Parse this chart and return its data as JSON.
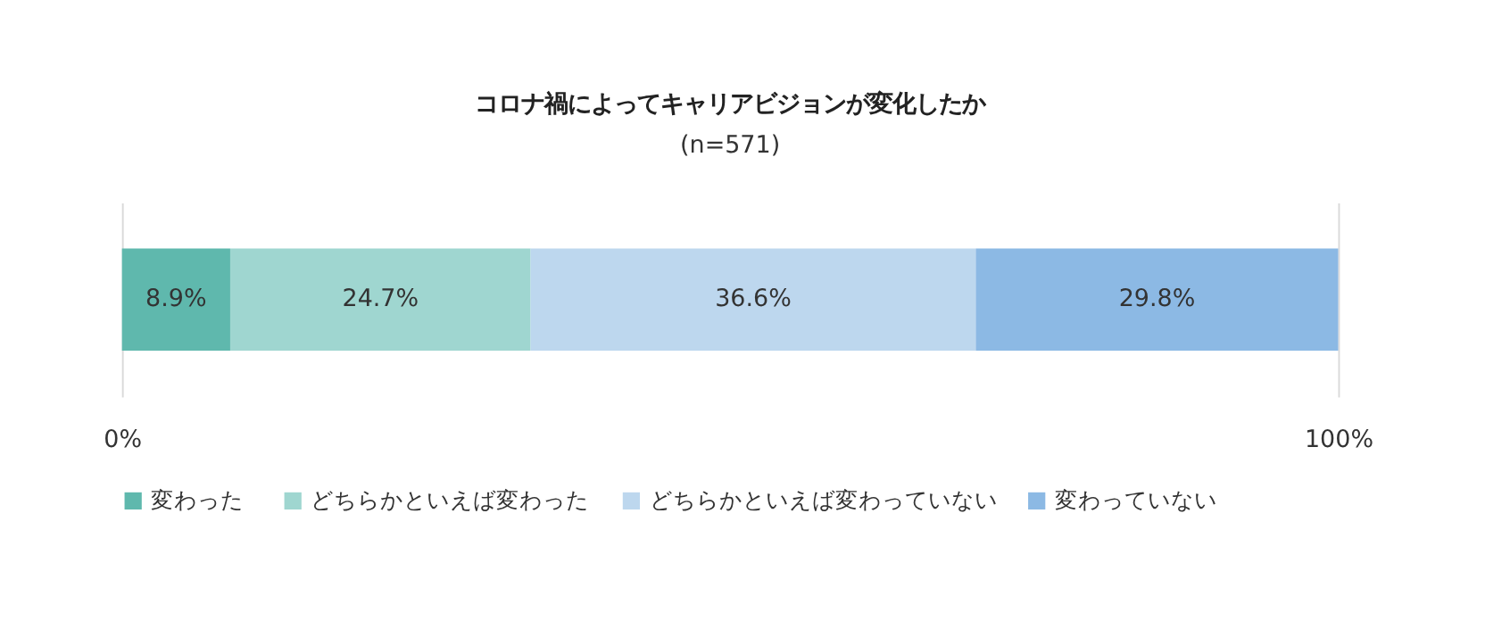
{
  "chart_data": {
    "type": "bar",
    "title": "コロナ禍によってキャリアビジョンが変化したか",
    "subtitle": "(n=571)",
    "categories": [
      null
    ],
    "orientation": "horizontal",
    "stacked": true,
    "series": [
      {
        "name": "変わった",
        "color": "#5fb8ad",
        "values": [
          8.9
        ],
        "value_labels": [
          "8.9%"
        ]
      },
      {
        "name": "どちらかといえば変わった",
        "color": "#9fd6d0",
        "values": [
          24.7
        ],
        "value_labels": [
          "24.7%"
        ]
      },
      {
        "name": "どちらかといえば変わっていない",
        "color": "#bdd7ee",
        "values": [
          36.6
        ],
        "value_labels": [
          "36.6%"
        ]
      },
      {
        "name": "変わっていない",
        "color": "#8cb9e4",
        "values": [
          29.8
        ],
        "value_labels": [
          "29.8%"
        ]
      }
    ],
    "xlim": [
      0,
      100
    ],
    "xticks": [
      {
        "value": 0,
        "label": "0%"
      },
      {
        "value": 100,
        "label": "100%"
      }
    ],
    "grid": "x",
    "legend": "bottom"
  }
}
